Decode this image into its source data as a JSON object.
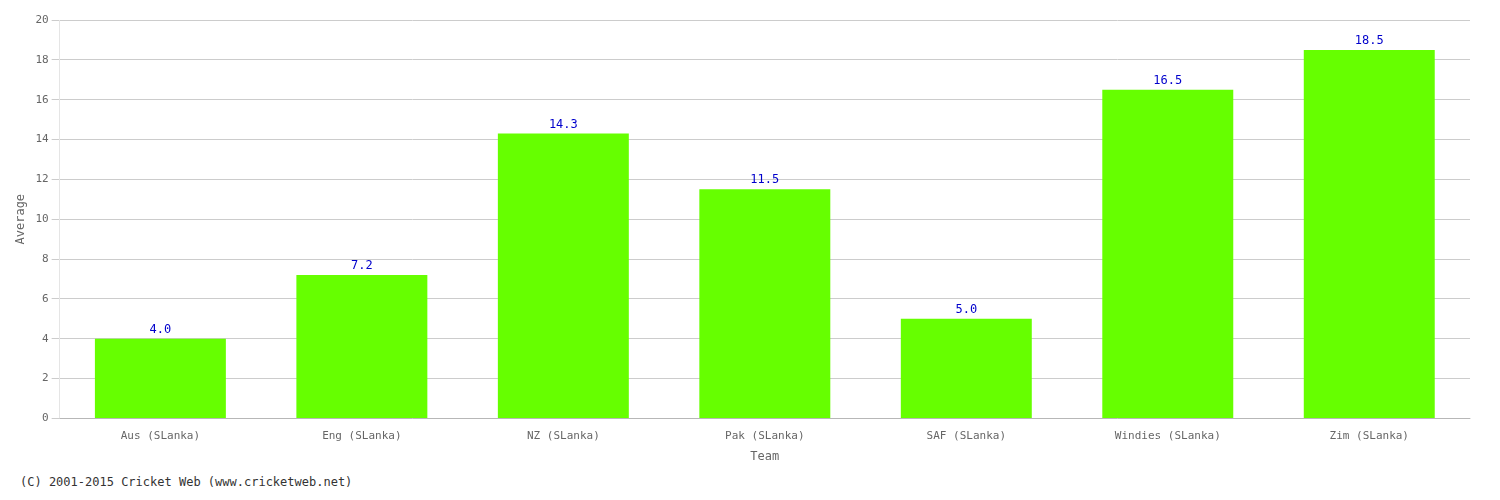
{
  "chart_data": {
    "type": "bar",
    "categories": [
      "Aus (SLanka)",
      "Eng (SLanka)",
      "NZ (SLanka)",
      "Pak (SLanka)",
      "SAF (SLanka)",
      "Windies (SLanka)",
      "Zim (SLanka)"
    ],
    "values": [
      4.0,
      7.2,
      14.3,
      11.5,
      5.0,
      16.5,
      18.5
    ],
    "value_labels": [
      "4.0",
      "7.2",
      "14.3",
      "11.5",
      "5.0",
      "16.5",
      "18.5"
    ],
    "data_labels": true,
    "color": "#66ff00",
    "xlabel": "Team",
    "ylabel": "Average",
    "ylim": [
      0,
      20
    ],
    "yticks": [
      0,
      2,
      4,
      6,
      8,
      10,
      12,
      14,
      16,
      18,
      20
    ],
    "grid": true,
    "annotations": [
      "(C) 2001-2015 Cricket Web (www.cricketweb.net)"
    ]
  }
}
